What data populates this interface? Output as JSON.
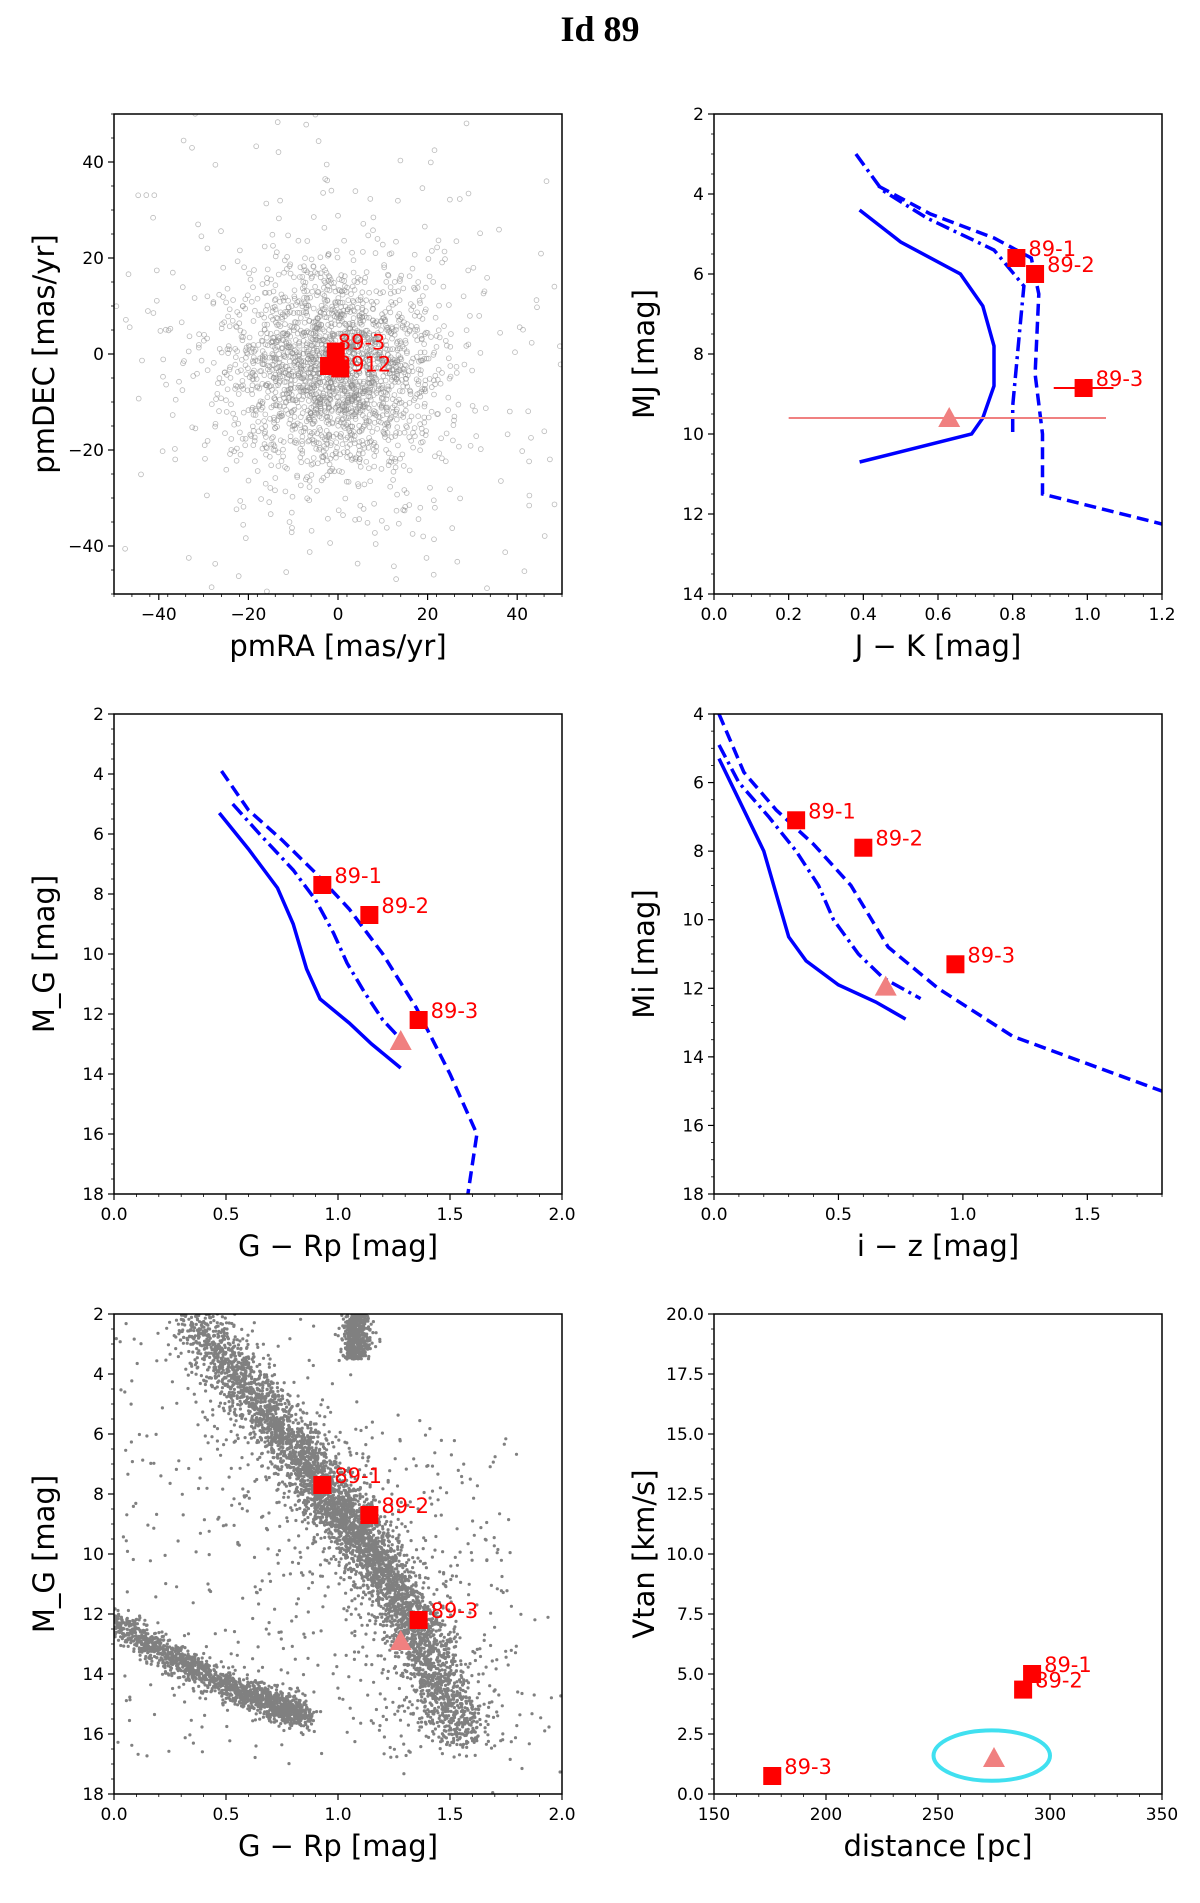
{
  "figure_title": "Id 89",
  "colors": {
    "target": "#ff0000",
    "model": "#0000ff",
    "triangle": "#f08080",
    "ellipse": "#40e0f0",
    "field": "#808080"
  },
  "chart_data": [
    {
      "id": "pm",
      "type": "scatter",
      "xlabel": "pmRA [mas/yr]",
      "ylabel": "pmDEC [mas/yr]",
      "xlim": [
        -50,
        50
      ],
      "ylim": [
        -50,
        50
      ],
      "xticks": [
        -40,
        -20,
        0,
        20,
        40
      ],
      "yticks": [
        -40,
        -20,
        0,
        20,
        40
      ],
      "field_cloud": {
        "center": [
          -1,
          -3
        ],
        "sigma": [
          11,
          10
        ],
        "n_core": 1800,
        "n_halo": 500
      },
      "points": [
        {
          "label": "89-3",
          "x": -0.5,
          "y": 0.5
        },
        {
          "label": "89-1",
          "x": -2.0,
          "y": -2.5
        },
        {
          "label": "89-2",
          "x": 0.5,
          "y": -3.0
        }
      ],
      "point_label_text": "8912"
    },
    {
      "id": "jk",
      "type": "line",
      "xlabel": "J − K [mag]",
      "ylabel": "MJ [mag]",
      "xlim": [
        0.0,
        1.2
      ],
      "ylim": [
        14,
        2
      ],
      "xticks": [
        0.0,
        0.2,
        0.4,
        0.6,
        0.8,
        1.0,
        1.2
      ],
      "yticks": [
        2,
        4,
        6,
        8,
        10,
        12,
        14
      ],
      "series": [
        {
          "name": "solid",
          "style": "solid",
          "x": [
            0.39,
            0.5,
            0.66,
            0.72,
            0.75,
            0.75,
            0.72,
            0.69,
            0.39
          ],
          "y": [
            4.4,
            5.2,
            6.0,
            6.8,
            7.8,
            8.8,
            9.6,
            10.0,
            10.7
          ]
        },
        {
          "name": "dashdot",
          "style": "dashdot",
          "x": [
            0.38,
            0.45,
            0.57,
            0.75,
            0.83,
            0.82,
            0.81,
            0.8,
            0.8
          ],
          "y": [
            3.0,
            3.9,
            4.6,
            5.4,
            6.3,
            7.3,
            8.3,
            9.3,
            10.0
          ]
        },
        {
          "name": "dashed",
          "style": "dashed",
          "x": [
            0.44,
            0.58,
            0.75,
            0.85,
            0.87,
            0.86,
            0.88,
            0.88,
            1.2
          ],
          "y": [
            3.8,
            4.5,
            5.1,
            5.6,
            6.5,
            8.5,
            10.0,
            11.5,
            12.25
          ]
        }
      ],
      "points": [
        {
          "label": "89-1",
          "x": 0.81,
          "y": 5.6,
          "xerr": 0.0
        },
        {
          "label": "89-2",
          "x": 0.86,
          "y": 6.0,
          "xerr": 0.0
        },
        {
          "label": "89-3",
          "x": 0.99,
          "y": 8.85,
          "xerr": 0.08
        }
      ],
      "triangle": {
        "x": 0.63,
        "y": 9.6,
        "xerr_low": 0.43,
        "xerr_high": 0.42
      }
    },
    {
      "id": "grp",
      "type": "line",
      "xlabel": "G − Rp [mag]",
      "ylabel": "M_G [mag]",
      "xlim": [
        0.0,
        2.0
      ],
      "ylim": [
        18,
        2
      ],
      "xticks": [
        0.0,
        0.5,
        1.0,
        1.5,
        2.0
      ],
      "yticks": [
        2,
        4,
        6,
        8,
        10,
        12,
        14,
        16,
        18
      ],
      "series": [
        {
          "name": "solid",
          "style": "solid",
          "x": [
            0.47,
            0.6,
            0.73,
            0.8,
            0.86,
            0.92,
            1.05,
            1.15,
            1.28
          ],
          "y": [
            5.3,
            6.5,
            7.8,
            9.0,
            10.5,
            11.5,
            12.3,
            13.0,
            13.8
          ]
        },
        {
          "name": "dashdot",
          "style": "dashdot",
          "x": [
            0.53,
            0.65,
            0.8,
            0.9,
            0.98,
            1.04,
            1.12,
            1.2,
            1.3
          ],
          "y": [
            5.0,
            6.0,
            7.2,
            8.2,
            9.3,
            10.3,
            11.3,
            12.2,
            13.0
          ]
        },
        {
          "name": "dashed",
          "style": "dashed",
          "x": [
            0.48,
            0.6,
            0.75,
            0.9,
            1.05,
            1.2,
            1.35,
            1.5,
            1.62,
            1.6,
            1.58
          ],
          "y": [
            3.9,
            5.2,
            6.2,
            7.3,
            8.5,
            10.0,
            11.8,
            14.0,
            16.0,
            17.0,
            18.0
          ]
        }
      ],
      "points": [
        {
          "label": "89-1",
          "x": 0.93,
          "y": 7.7
        },
        {
          "label": "89-2",
          "x": 1.14,
          "y": 8.7
        },
        {
          "label": "89-3",
          "x": 1.36,
          "y": 12.2
        }
      ],
      "triangle": {
        "x": 1.28,
        "y": 12.9
      }
    },
    {
      "id": "iz",
      "type": "line",
      "xlabel": "i − z [mag]",
      "ylabel": "Mi [mag]",
      "xlim": [
        0.0,
        1.8
      ],
      "ylim": [
        18,
        4
      ],
      "xticks": [
        0.0,
        0.5,
        1.0,
        1.5
      ],
      "yticks": [
        4,
        6,
        8,
        10,
        12,
        14,
        16,
        18
      ],
      "series": [
        {
          "name": "solid",
          "style": "solid",
          "x": [
            0.02,
            0.1,
            0.2,
            0.26,
            0.3,
            0.37,
            0.5,
            0.65,
            0.77
          ],
          "y": [
            5.3,
            6.5,
            8.0,
            9.5,
            10.5,
            11.2,
            11.9,
            12.4,
            12.9
          ]
        },
        {
          "name": "dashdot",
          "style": "dashdot",
          "x": [
            0.02,
            0.1,
            0.22,
            0.33,
            0.42,
            0.48,
            0.58,
            0.68,
            0.83
          ],
          "y": [
            4.9,
            6.0,
            7.0,
            8.0,
            9.0,
            10.0,
            11.0,
            11.7,
            12.3
          ]
        },
        {
          "name": "dashed",
          "style": "dashed",
          "x": [
            0.02,
            0.12,
            0.25,
            0.4,
            0.55,
            0.7,
            0.9,
            1.2,
            1.5,
            1.8
          ],
          "y": [
            4.0,
            5.7,
            6.8,
            7.8,
            9.0,
            10.8,
            12.0,
            13.4,
            14.2,
            15.0
          ]
        }
      ],
      "points": [
        {
          "label": "89-1",
          "x": 0.33,
          "y": 7.1
        },
        {
          "label": "89-2",
          "x": 0.6,
          "y": 7.9
        },
        {
          "label": "89-3",
          "x": 0.97,
          "y": 11.3
        }
      ],
      "triangle": {
        "x": 0.69,
        "y": 11.95
      }
    },
    {
      "id": "cmd",
      "type": "scatter",
      "xlabel": "G − Rp [mag]",
      "ylabel": "M_G [mag]",
      "xlim": [
        0.0,
        2.0
      ],
      "ylim": [
        18,
        2
      ],
      "xticks": [
        0.0,
        0.5,
        1.0,
        1.5,
        2.0
      ],
      "yticks": [
        2,
        4,
        6,
        8,
        10,
        12,
        14,
        16,
        18
      ],
      "main_sequence": {
        "x": [
          0.35,
          0.55,
          0.7,
          0.85,
          0.95,
          1.05,
          1.15,
          1.25,
          1.35,
          1.45,
          1.55
        ],
        "y": [
          2.0,
          4.0,
          5.5,
          6.8,
          8.0,
          9.0,
          10.0,
          11.2,
          12.5,
          14.2,
          16.2
        ]
      },
      "white_dwarf": {
        "x": [
          0.0,
          0.2,
          0.4,
          0.6,
          0.75,
          0.85
        ],
        "y": [
          12.2,
          13.2,
          14.0,
          14.7,
          15.1,
          15.4
        ]
      },
      "points": [
        {
          "label": "89-1",
          "x": 0.93,
          "y": 7.7
        },
        {
          "label": "89-2",
          "x": 1.14,
          "y": 8.7
        },
        {
          "label": "89-3",
          "x": 1.36,
          "y": 12.2
        }
      ],
      "triangle": {
        "x": 1.28,
        "y": 12.9
      }
    },
    {
      "id": "vtan",
      "type": "scatter",
      "xlabel": "distance [pc]",
      "ylabel": "Vtan [km/s]",
      "xlim": [
        150,
        350
      ],
      "ylim": [
        0.0,
        20.0
      ],
      "xticks": [
        150,
        200,
        250,
        300,
        350
      ],
      "yticks": [
        0.0,
        2.5,
        5.0,
        7.5,
        10.0,
        12.5,
        15.0,
        17.5,
        20.0
      ],
      "points": [
        {
          "label": "89-1",
          "x": 292,
          "y": 5.0
        },
        {
          "label": "89-2",
          "x": 288,
          "y": 4.35
        },
        {
          "label": "89-3",
          "x": 176,
          "y": 0.75
        }
      ],
      "triangle": {
        "x": 275,
        "y": 1.5
      },
      "ellipse": {
        "cx": 274,
        "cy": 1.6,
        "rx": 26,
        "ry": 1.05
      }
    }
  ]
}
